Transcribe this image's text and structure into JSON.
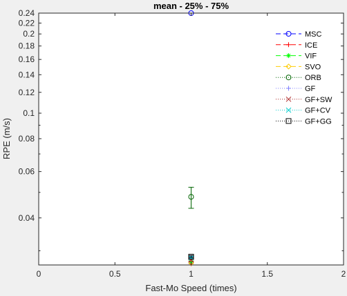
{
  "chart_data": {
    "type": "scatter",
    "title": "mean - 25% - 75%",
    "xlabel": "Fast-Mo Speed (times)",
    "ylabel": "RPE (m/s)",
    "xlim": [
      0,
      2
    ],
    "ylim": [
      0.0265,
      0.24
    ],
    "yscale": "log",
    "grid": false,
    "legend_position": "top-right",
    "xticks": [
      0,
      0.5,
      1,
      1.5,
      2
    ],
    "xtick_labels": [
      "0",
      "0.5",
      "1",
      "1.5",
      "2"
    ],
    "yticks": [
      0.04,
      0.06,
      0.08,
      0.1,
      0.12,
      0.14,
      0.16,
      0.18,
      0.2,
      0.22,
      0.24
    ],
    "ytick_labels": [
      "0.04",
      "0.06",
      "0.08",
      "0.1",
      "0.12",
      "0.14",
      "0.16",
      "0.18",
      "0.2",
      "0.22",
      "0.24"
    ],
    "series": [
      {
        "name": "MSC",
        "color": "#0000ff",
        "marker": "circle",
        "line": "solid",
        "x": [
          1
        ],
        "y": [
          0.24
        ],
        "err_low": [
          0.24
        ],
        "err_high": [
          0.24
        ]
      },
      {
        "name": "ICE",
        "color": "#ff0000",
        "marker": "plus",
        "line": "solid",
        "x": [
          1
        ],
        "y": [
          0.0268
        ],
        "err_low": [
          0.0267
        ],
        "err_high": [
          0.0269
        ]
      },
      {
        "name": "VIF",
        "color": "#00ff00",
        "marker": "asterisk",
        "line": "solid",
        "x": [
          1
        ],
        "y": [
          0.0272
        ],
        "err_low": [
          0.0271
        ],
        "err_high": [
          0.0273
        ]
      },
      {
        "name": "SVO",
        "color": "#ffcc00",
        "marker": "diamond",
        "line": "solid",
        "x": [
          1
        ],
        "y": [
          0.027
        ],
        "err_low": [
          0.0269
        ],
        "err_high": [
          0.0271
        ]
      },
      {
        "name": "ORB",
        "color": "#006400",
        "marker": "circle",
        "line": "dotted",
        "x": [
          1
        ],
        "y": [
          0.0481
        ],
        "err_low": [
          0.0435
        ],
        "err_high": [
          0.0523
        ]
      },
      {
        "name": "GF",
        "color": "#7f7fff",
        "marker": "plus",
        "line": "dotted",
        "x": [
          1
        ],
        "y": [
          0.0283
        ],
        "err_low": [
          0.0281
        ],
        "err_high": [
          0.0286
        ]
      },
      {
        "name": "GF+SW",
        "color": "#aa2222",
        "marker": "x",
        "line": "dotted",
        "x": [
          1
        ],
        "y": [
          0.0276
        ],
        "err_low": [
          0.0274
        ],
        "err_high": [
          0.0278
        ]
      },
      {
        "name": "GF+CV",
        "color": "#00cccc",
        "marker": "x",
        "line": "dotted",
        "x": [
          1
        ],
        "y": [
          0.0282
        ],
        "err_low": [
          0.028
        ],
        "err_high": [
          0.0285
        ]
      },
      {
        "name": "GF+GG",
        "color": "#000000",
        "marker": "square",
        "line": "dotted",
        "x": [
          1
        ],
        "y": [
          0.0285
        ],
        "err_low": [
          0.0283
        ],
        "err_high": [
          0.0288
        ]
      }
    ]
  }
}
